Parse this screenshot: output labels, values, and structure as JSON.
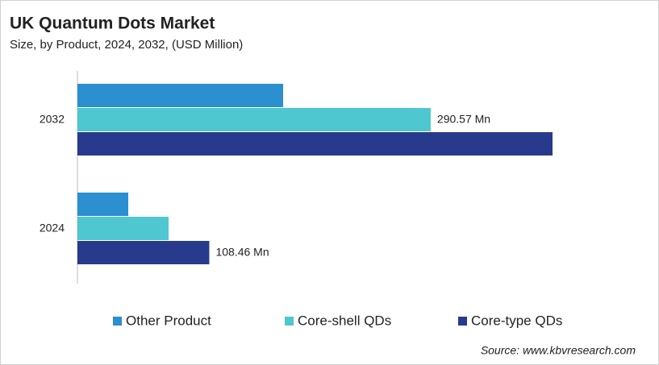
{
  "chart_data": {
    "type": "hbar",
    "title": "UK Quantum Dots Market",
    "subtitle": "Size, by Product, 2024, 2032, (USD Million)",
    "categories": [
      "2032",
      "2024"
    ],
    "series": [
      {
        "name": "Other Product",
        "color": "#2b8fd0",
        "values": [
          169.2,
          41.8
        ]
      },
      {
        "name": "Core-shell QDs",
        "color": "#4fc7d0",
        "values": [
          290.57,
          75.0
        ],
        "value_labels": [
          "290.57 Mn",
          null
        ]
      },
      {
        "name": "Core-type QDs",
        "color": "#283a8c",
        "values": [
          390.8,
          108.46
        ],
        "value_labels": [
          null,
          "108.46 Mn"
        ]
      }
    ],
    "source": "Source: www.kbvresearch.com"
  }
}
